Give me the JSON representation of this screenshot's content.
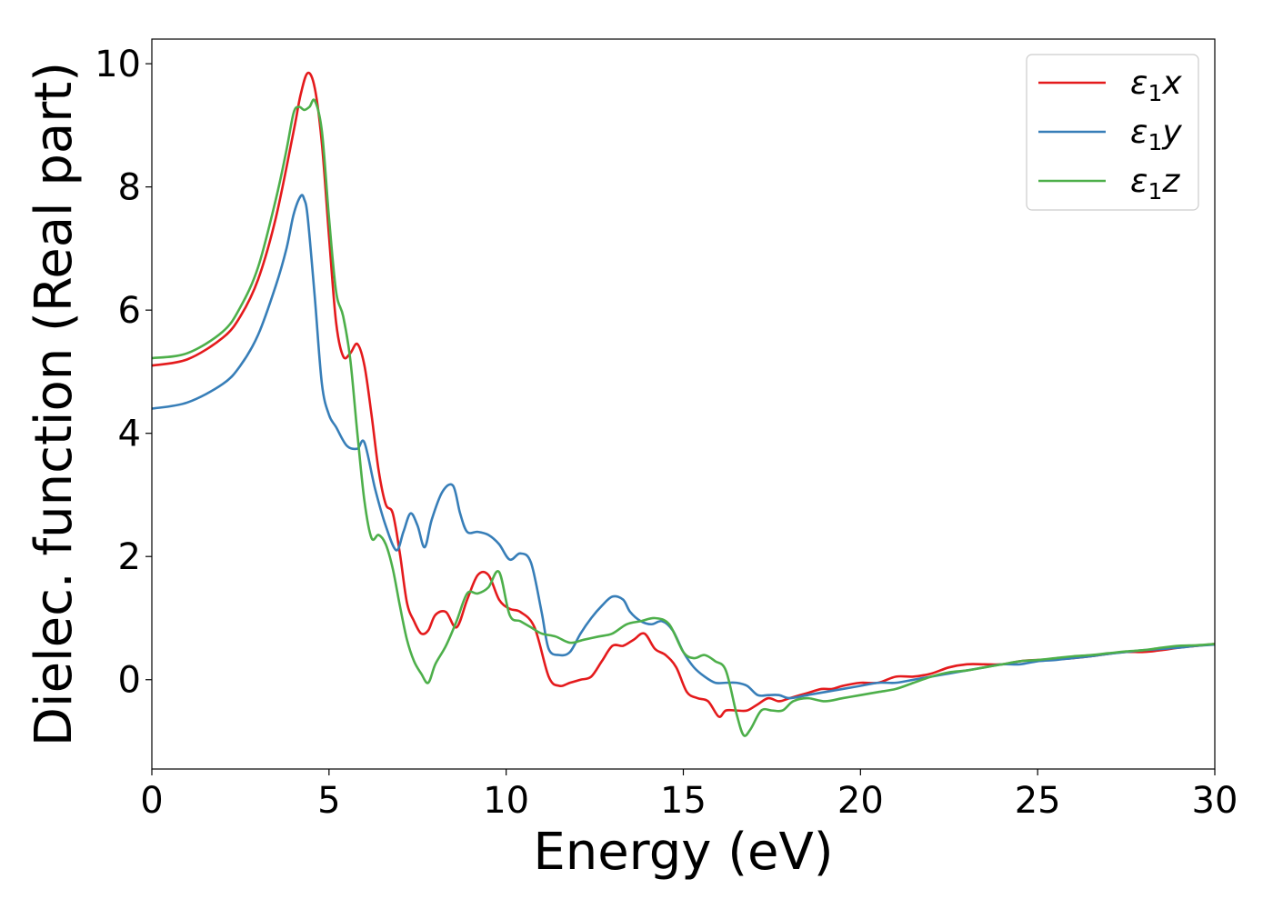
{
  "chart_data": {
    "type": "line",
    "title": "",
    "xlabel": "Energy (eV)",
    "ylabel": "Dielec. function (Real part)",
    "xlim": [
      0,
      30
    ],
    "ylim": [
      -1.45,
      10.4
    ],
    "xticks": [
      0,
      5,
      10,
      15,
      20,
      25,
      30
    ],
    "yticks": [
      0,
      2,
      4,
      6,
      8,
      10
    ],
    "grid": false,
    "legend_position": "top-right",
    "series": [
      {
        "name": "ε₁x",
        "legend_base": "ε",
        "legend_sub": "1",
        "legend_suffix": "x",
        "color": "#e41a1c",
        "x": [
          0,
          1,
          2,
          2.5,
          3,
          3.5,
          4,
          4.2,
          4.4,
          4.6,
          4.8,
          5.0,
          5.2,
          5.4,
          5.6,
          5.8,
          6.0,
          6.2,
          6.4,
          6.6,
          6.8,
          7.0,
          7.2,
          7.4,
          7.6,
          7.8,
          8.0,
          8.3,
          8.6,
          8.9,
          9.2,
          9.5,
          9.8,
          10.1,
          10.4,
          10.8,
          11.2,
          11.5,
          11.8,
          12.1,
          12.4,
          12.7,
          13.0,
          13.3,
          13.6,
          13.9,
          14.2,
          14.5,
          14.8,
          15.1,
          15.4,
          15.7,
          16.0,
          16.2,
          16.5,
          16.8,
          17.1,
          17.4,
          17.7,
          18.0,
          18.3,
          18.6,
          18.9,
          19.2,
          19.5,
          20.0,
          20.5,
          21.0,
          21.5,
          22.0,
          22.5,
          23.0,
          23.5,
          24.0,
          24.5,
          25.0,
          25.5,
          26.0,
          26.5,
          27.0,
          27.5,
          28.0,
          28.5,
          29.0,
          29.5,
          30.0
        ],
        "y": [
          5.1,
          5.2,
          5.55,
          5.9,
          6.5,
          7.5,
          8.9,
          9.5,
          9.85,
          9.6,
          8.7,
          7.2,
          5.8,
          5.25,
          5.3,
          5.45,
          5.1,
          4.3,
          3.4,
          2.85,
          2.7,
          2.05,
          1.25,
          0.95,
          0.75,
          0.8,
          1.05,
          1.1,
          0.85,
          1.3,
          1.7,
          1.7,
          1.3,
          1.15,
          1.1,
          0.85,
          0.05,
          -0.1,
          -0.05,
          0.0,
          0.05,
          0.3,
          0.55,
          0.55,
          0.65,
          0.75,
          0.5,
          0.4,
          0.2,
          -0.2,
          -0.3,
          -0.35,
          -0.6,
          -0.5,
          -0.5,
          -0.5,
          -0.4,
          -0.3,
          -0.35,
          -0.3,
          -0.25,
          -0.2,
          -0.15,
          -0.15,
          -0.1,
          -0.05,
          -0.05,
          0.05,
          0.05,
          0.1,
          0.2,
          0.25,
          0.25,
          0.25,
          0.3,
          0.32,
          0.33,
          0.35,
          0.38,
          0.42,
          0.45,
          0.45,
          0.48,
          0.52,
          0.55,
          0.58
        ]
      },
      {
        "name": "ε₁y",
        "legend_base": "ε",
        "legend_sub": "1",
        "legend_suffix": "y",
        "color": "#377eb8",
        "x": [
          0,
          1,
          2,
          2.5,
          3,
          3.5,
          3.8,
          4.0,
          4.2,
          4.3,
          4.4,
          4.6,
          4.8,
          5.0,
          5.2,
          5.5,
          5.8,
          6.0,
          6.3,
          6.6,
          6.9,
          7.1,
          7.3,
          7.5,
          7.7,
          7.9,
          8.2,
          8.5,
          8.7,
          8.9,
          9.2,
          9.5,
          9.8,
          10.1,
          10.4,
          10.7,
          11.0,
          11.2,
          11.5,
          11.8,
          12.1,
          12.4,
          12.7,
          13.0,
          13.3,
          13.5,
          13.8,
          14.1,
          14.4,
          14.7,
          15.0,
          15.3,
          15.6,
          15.9,
          16.2,
          16.5,
          16.8,
          17.1,
          17.4,
          17.7,
          18.0,
          18.5,
          19.0,
          19.5,
          20.0,
          20.5,
          21.0,
          21.5,
          22.0,
          22.5,
          23.0,
          23.5,
          24.0,
          24.5,
          25.0,
          25.5,
          26.0,
          26.5,
          27.0,
          27.5,
          28.0,
          28.5,
          29.0,
          29.5,
          30.0
        ],
        "y": [
          4.4,
          4.5,
          4.8,
          5.1,
          5.6,
          6.4,
          7.0,
          7.55,
          7.85,
          7.8,
          7.5,
          6.2,
          4.8,
          4.3,
          4.1,
          3.8,
          3.75,
          3.85,
          3.1,
          2.5,
          2.1,
          2.4,
          2.7,
          2.5,
          2.15,
          2.6,
          3.05,
          3.15,
          2.7,
          2.4,
          2.4,
          2.35,
          2.2,
          1.95,
          2.05,
          1.9,
          1.1,
          0.5,
          0.4,
          0.45,
          0.75,
          1.0,
          1.2,
          1.35,
          1.3,
          1.1,
          0.95,
          0.9,
          0.95,
          0.8,
          0.45,
          0.2,
          0.05,
          -0.05,
          -0.05,
          -0.05,
          -0.1,
          -0.25,
          -0.25,
          -0.25,
          -0.3,
          -0.25,
          -0.2,
          -0.15,
          -0.1,
          -0.05,
          -0.05,
          0.0,
          0.05,
          0.1,
          0.15,
          0.2,
          0.25,
          0.25,
          0.3,
          0.32,
          0.35,
          0.38,
          0.42,
          0.45,
          0.48,
          0.5,
          0.52,
          0.55,
          0.57
        ]
      },
      {
        "name": "ε₁z",
        "legend_base": "ε",
        "legend_sub": "1",
        "legend_suffix": "z",
        "color": "#4daf4a",
        "x": [
          0,
          1,
          2,
          2.5,
          3,
          3.5,
          3.8,
          4.0,
          4.15,
          4.3,
          4.45,
          4.6,
          4.8,
          5.0,
          5.2,
          5.4,
          5.6,
          5.8,
          6.0,
          6.2,
          6.4,
          6.6,
          6.8,
          7.0,
          7.2,
          7.4,
          7.6,
          7.8,
          8.0,
          8.3,
          8.6,
          8.9,
          9.2,
          9.5,
          9.8,
          10.1,
          10.4,
          10.7,
          11.0,
          11.4,
          11.8,
          12.2,
          12.6,
          13.0,
          13.4,
          13.8,
          14.2,
          14.6,
          15.0,
          15.3,
          15.6,
          15.9,
          16.2,
          16.5,
          16.7,
          16.9,
          17.2,
          17.5,
          17.8,
          18.1,
          18.5,
          19.0,
          19.5,
          20.0,
          20.5,
          21.0,
          21.5,
          22.0,
          22.5,
          23.0,
          23.5,
          24.0,
          24.5,
          25.0,
          25.5,
          26.0,
          26.5,
          27.0,
          27.5,
          28.0,
          28.5,
          29.0,
          29.5,
          30.0
        ],
        "y": [
          5.22,
          5.3,
          5.65,
          6.05,
          6.7,
          7.8,
          8.6,
          9.2,
          9.3,
          9.25,
          9.3,
          9.4,
          8.9,
          7.5,
          6.3,
          5.9,
          5.2,
          4.0,
          2.9,
          2.3,
          2.35,
          2.2,
          1.8,
          1.2,
          0.65,
          0.3,
          0.1,
          -0.05,
          0.25,
          0.55,
          0.95,
          1.4,
          1.4,
          1.5,
          1.75,
          1.05,
          0.95,
          0.85,
          0.75,
          0.7,
          0.6,
          0.65,
          0.7,
          0.75,
          0.9,
          0.95,
          1.0,
          0.9,
          0.45,
          0.35,
          0.4,
          0.3,
          0.15,
          -0.55,
          -0.9,
          -0.8,
          -0.5,
          -0.5,
          -0.5,
          -0.35,
          -0.3,
          -0.35,
          -0.3,
          -0.25,
          -0.2,
          -0.15,
          -0.05,
          0.05,
          0.12,
          0.15,
          0.2,
          0.25,
          0.3,
          0.32,
          0.35,
          0.38,
          0.4,
          0.43,
          0.46,
          0.48,
          0.52,
          0.55,
          0.56,
          0.58
        ]
      }
    ]
  }
}
